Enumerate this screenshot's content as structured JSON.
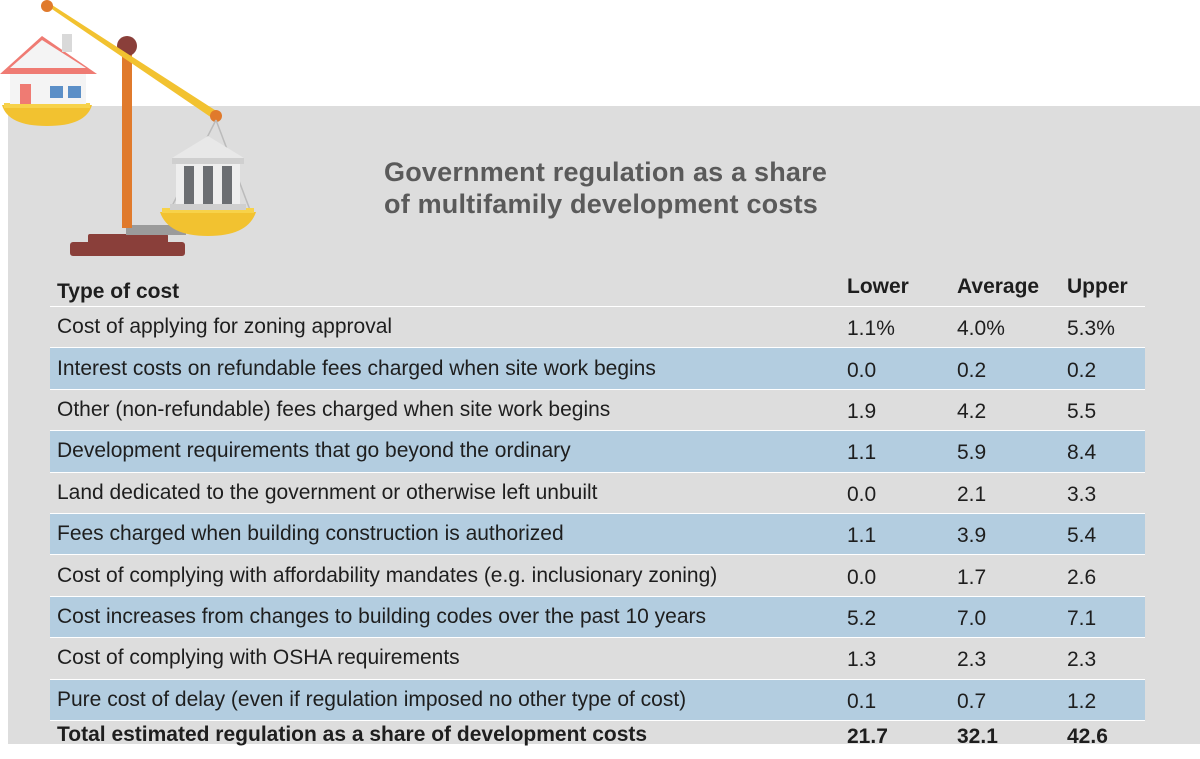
{
  "title": {
    "line1": "Government regulation as a share",
    "line2": "of multifamily development costs"
  },
  "table": {
    "headers": [
      "Type of cost",
      "Lower",
      "Average",
      "Upper"
    ],
    "rows": [
      {
        "type": "Cost of applying for zoning approval",
        "lower": "1.1%",
        "average": "4.0%",
        "upper": "5.3%"
      },
      {
        "type": "Interest costs on refundable fees charged when site work begins",
        "lower": "0.0",
        "average": "0.2",
        "upper": "0.2"
      },
      {
        "type": "Other (non-refundable) fees charged when site work begins",
        "lower": "1.9",
        "average": "4.2",
        "upper": "5.5"
      },
      {
        "type": "Development requirements that go beyond the ordinary",
        "lower": "1.1",
        "average": "5.9",
        "upper": "8.4"
      },
      {
        "type": "Land dedicated to the government or otherwise left unbuilt",
        "lower": "0.0",
        "average": "2.1",
        "upper": "3.3"
      },
      {
        "type": "Fees charged when building construction is authorized",
        "lower": "1.1",
        "average": "3.9",
        "upper": "5.4"
      },
      {
        "type": "Cost of complying with affordability mandates (e.g. inclusionary zoning)",
        "lower": "0.0",
        "average": "1.7",
        "upper": "2.6"
      },
      {
        "type": "Cost increases from changes to building codes over the past 10 years",
        "lower": "5.2",
        "average": "7.0",
        "upper": "7.1"
      },
      {
        "type": "Cost of complying with OSHA requirements",
        "lower": "1.3",
        "average": "2.3",
        "upper": "2.3"
      },
      {
        "type": "Pure cost of delay (even if regulation imposed no other type of cost)",
        "lower": "0.1",
        "average": "0.7",
        "upper": "1.2"
      }
    ],
    "total": {
      "type": "Total estimated regulation as a share of development costs",
      "lower": "21.7",
      "average": "32.1",
      "upper": "42.6"
    }
  },
  "illustration": {
    "icons": [
      "scale-icon",
      "house-icon",
      "government-building-icon"
    ],
    "colors": {
      "background_panel": "#dddddd",
      "row_highlight": "#b3cde0",
      "scale_pole": "#e07a2c",
      "scale_beam": "#f2c230",
      "pan": "#f2c230",
      "base": "#8a3f3a",
      "house_roof": "#ef7b73",
      "building": "#9ea3a7"
    }
  }
}
